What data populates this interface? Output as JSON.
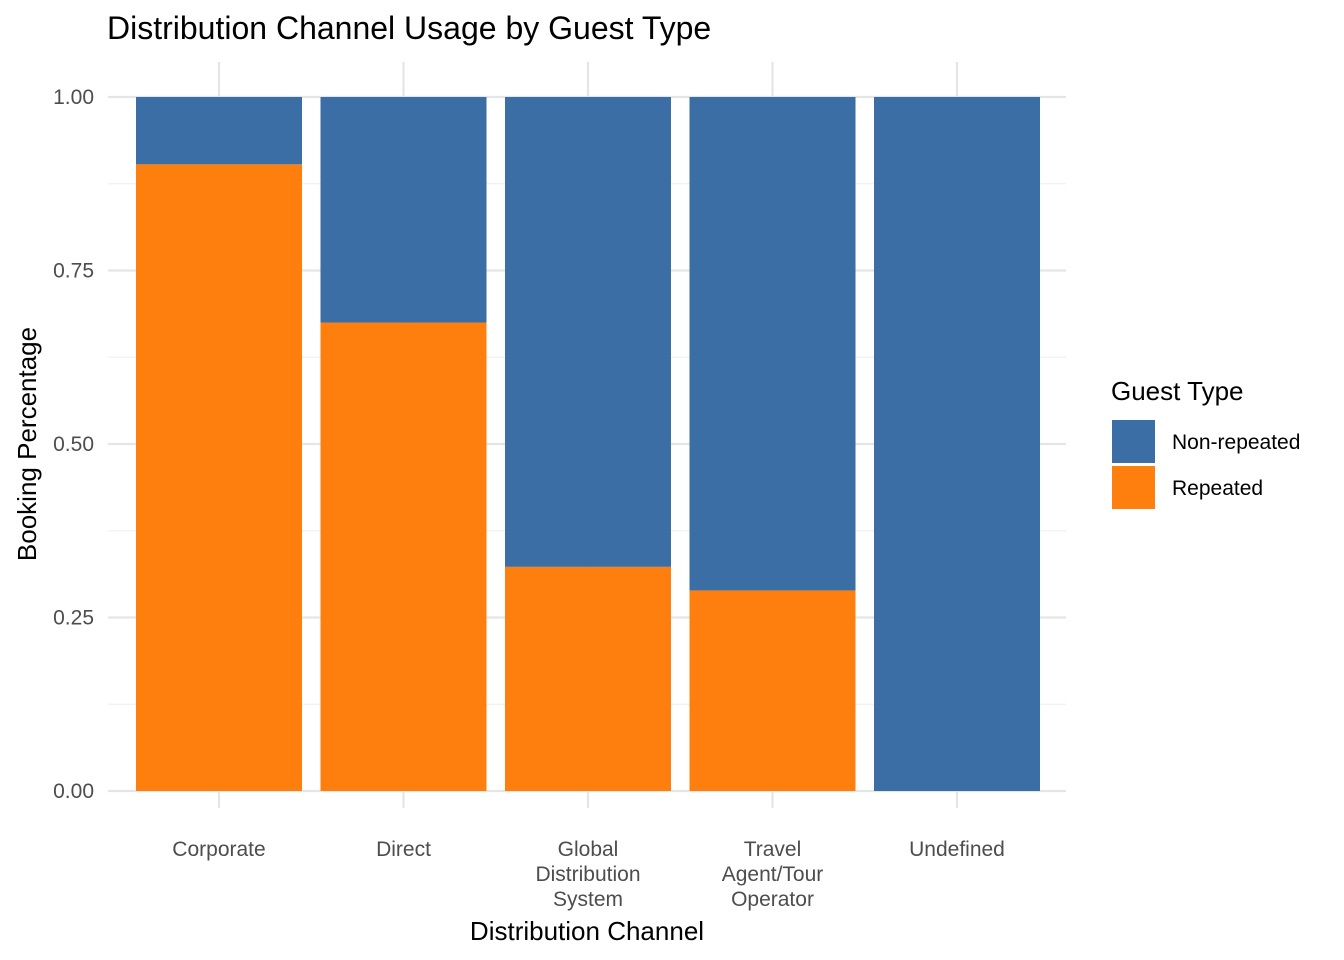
{
  "chart_data": {
    "type": "bar",
    "stacked": true,
    "title": "Distribution Channel Usage by Guest Type",
    "xlabel": "Distribution Channel",
    "ylabel": "Booking Percentage",
    "ylim": [
      0,
      1
    ],
    "yticks": [
      "0.00",
      "0.25",
      "0.50",
      "0.75",
      "1.00"
    ],
    "ytick_values": [
      0,
      0.25,
      0.5,
      0.75,
      1.0
    ],
    "categories": [
      [
        "Corporate"
      ],
      [
        "Direct"
      ],
      [
        "Global",
        "Distribution",
        "System"
      ],
      [
        "Travel",
        "Agent/Tour",
        "Operator"
      ],
      [
        "Undefined"
      ]
    ],
    "series": [
      {
        "name": "Repeated",
        "color": "#FF7F0E",
        "values": [
          0.903,
          0.675,
          0.323,
          0.289,
          0.0
        ]
      },
      {
        "name": "Non-repeated",
        "color": "#3A6EA5",
        "values": [
          0.097,
          0.325,
          0.677,
          0.711,
          1.0
        ]
      }
    ],
    "legend": {
      "title": "Guest Type",
      "position": "right",
      "entries": [
        {
          "label": "Non-repeated",
          "color": "#3A6EA5"
        },
        {
          "label": "Repeated",
          "color": "#FF7F0E"
        }
      ]
    },
    "grid": true
  }
}
